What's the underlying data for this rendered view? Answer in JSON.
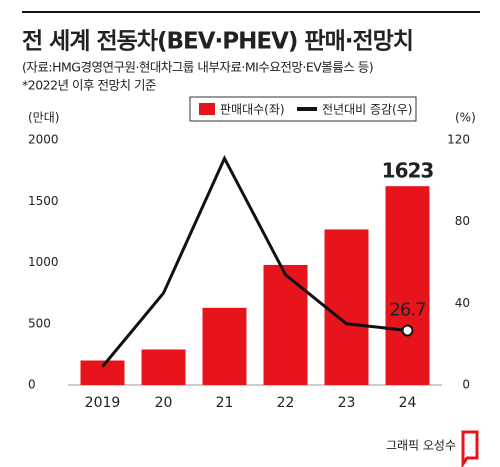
{
  "chart_data": {
    "type": "bar-line",
    "title": "전 세계 전동차(BEV·PHEV) 판매·전망치",
    "subtitle": "(자료:HMG경영연구원·현대차그룹 내부자료·MI수요전망·EV볼륨스 등)",
    "note": "*2022년 이후 전망치 기준",
    "y_label": "(만대)",
    "y2_label": "(%)",
    "credit": "그래픽 오성수",
    "categories": [
      "2019",
      "20",
      "21",
      "22",
      "23",
      "24"
    ],
    "series": [
      {
        "name": "판매대수(좌)",
        "color": "#e8141b",
        "type": "bar",
        "values": [
          200,
          290,
          630,
          980,
          1270,
          1623
        ]
      },
      {
        "name": "전년대비 증감(우)",
        "color": "#111111",
        "type": "line",
        "axis": "y2",
        "values": [
          9,
          45,
          111,
          54,
          30,
          26.7
        ]
      }
    ],
    "ylim": [
      0,
      2000
    ],
    "yticks": [
      0,
      500,
      1000,
      1500,
      2000
    ],
    "y2lim": [
      0,
      120
    ],
    "y2ticks": [
      0,
      40,
      80,
      120
    ],
    "grid": false
  }
}
